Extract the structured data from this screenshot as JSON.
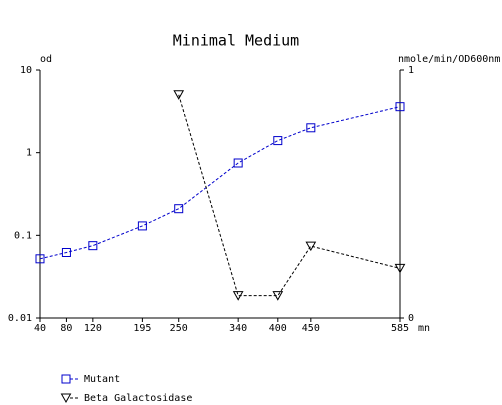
{
  "chart_data": {
    "type": "line",
    "title": "Minimal Medium",
    "ylabel": "od",
    "y2label": "nmole/min/OD600nm",
    "xlabel": "mn",
    "x": [
      40,
      80,
      120,
      195,
      250,
      340,
      400,
      450,
      585
    ],
    "xlim": [
      40,
      585
    ],
    "xticks": [
      40,
      80,
      120,
      195,
      250,
      340,
      400,
      450,
      585
    ],
    "ylim": [
      0.01,
      10
    ],
    "yticks": [
      0.01,
      0.1,
      1,
      10
    ],
    "yscale": "log",
    "y2lim": [
      0,
      1
    ],
    "y2ticks": [
      0,
      1
    ],
    "series": [
      {
        "name": "Mutant",
        "color": "#0000cc",
        "marker": "square",
        "values": [
          0.052,
          0.062,
          0.075,
          0.13,
          0.21,
          0.75,
          1.4,
          2.0,
          3.6
        ]
      },
      {
        "name": "Beta Galactosidase",
        "color": "#000000",
        "marker": "triangle-down",
        "axis": "y2",
        "values": [
          null,
          null,
          null,
          null,
          0.9,
          0.09,
          0.09,
          0.29,
          0.2
        ]
      }
    ]
  }
}
